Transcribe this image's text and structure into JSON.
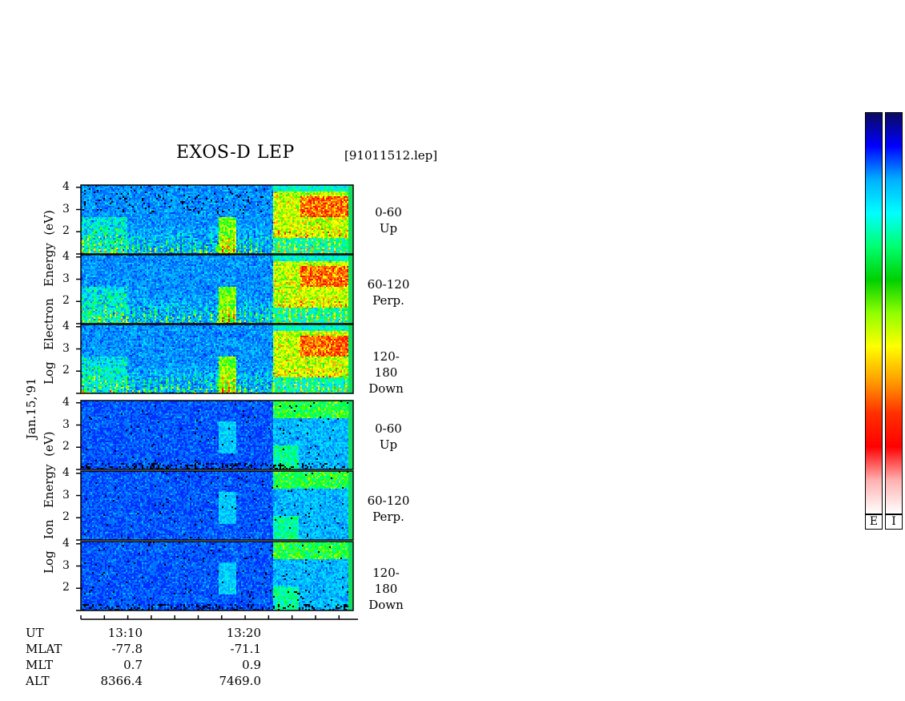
{
  "header": {
    "title": "EXOS-D LEP",
    "file": "[91011512.lep]"
  },
  "date_label": "Jan.15,'91",
  "electron": {
    "ylabel_lines": [
      "Log",
      "Electron",
      "Energy",
      "(eV)"
    ],
    "panels": [
      {
        "angle": "0-60",
        "dir": "Up"
      },
      {
        "angle": "60-120",
        "dir": "Perp."
      },
      {
        "angle": "120-180",
        "dir": "Down"
      }
    ]
  },
  "ion": {
    "ylabel_lines": [
      "Log",
      "Ion",
      "Energy",
      "(eV)"
    ],
    "panels": [
      {
        "angle": "0-60",
        "dir": "Up"
      },
      {
        "angle": "60-120",
        "dir": "Perp."
      },
      {
        "angle": "120-180",
        "dir": "Down"
      }
    ]
  },
  "y_ticks": [
    "4",
    "3",
    "2"
  ],
  "x_ticks": [
    "13:10",
    "13:20"
  ],
  "ephemeris": {
    "labels": [
      "UT",
      "MLAT",
      "MLT",
      "ALT"
    ],
    "col1": [
      "13:10",
      "-77.8",
      "0.7",
      "8366.4"
    ],
    "col2": [
      "13:20",
      "-71.1",
      "0.9",
      "7469.0"
    ]
  },
  "colorbar": {
    "labels": [
      "E",
      "I"
    ],
    "colors_top_to_bottom": [
      "#0a0a60",
      "#0000ff",
      "#00b0ff",
      "#00ffff",
      "#00ff70",
      "#00d000",
      "#90ff00",
      "#ffff00",
      "#ffa000",
      "#ff3000",
      "#ff0000",
      "#ffb0b0",
      "#ffffff"
    ]
  },
  "chart_data": {
    "type": "heatmap",
    "title": "EXOS-D LEP",
    "subtitle": "[91011512.lep]",
    "xlabel": "UT",
    "ylabel": "Log Electron Energy (eV) / Log Ion Energy (eV)",
    "x_tick_labels": [
      "13:10",
      "13:20"
    ],
    "y_tick_labels": [
      "2",
      "3",
      "4"
    ],
    "ylim": [
      1,
      4.1
    ],
    "series": [
      {
        "name": "Electron 0-60 Up"
      },
      {
        "name": "Electron 60-120 Perp."
      },
      {
        "name": "Electron 120-180 Down"
      },
      {
        "name": "Ion 0-60 Up"
      },
      {
        "name": "Ion 60-120 Perp."
      },
      {
        "name": "Ion 120-180 Down"
      }
    ]
  }
}
